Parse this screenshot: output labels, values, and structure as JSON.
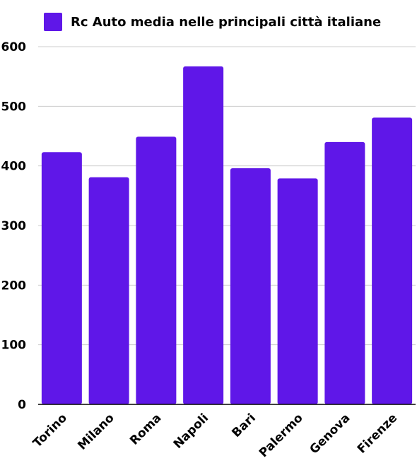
{
  "chart_data": {
    "type": "bar",
    "title": "",
    "xlabel": "",
    "ylabel": "",
    "categories": [
      "Torino",
      "Milano",
      "Roma",
      "Napoli",
      "Bari",
      "Palermo",
      "Genova",
      "Firenze"
    ],
    "series": [
      {
        "name": "Rc Auto media nelle principali città italiane",
        "values": [
          423,
          381,
          449,
          567,
          396,
          379,
          440,
          481
        ]
      }
    ],
    "ylim": [
      0,
      600
    ],
    "yticks": [
      0,
      100,
      200,
      300,
      400,
      500,
      600
    ],
    "grid": true,
    "legend": "top",
    "colors": {
      "bar": "#5f17e8",
      "grid": "#cccccc",
      "axis": "#000000"
    }
  }
}
